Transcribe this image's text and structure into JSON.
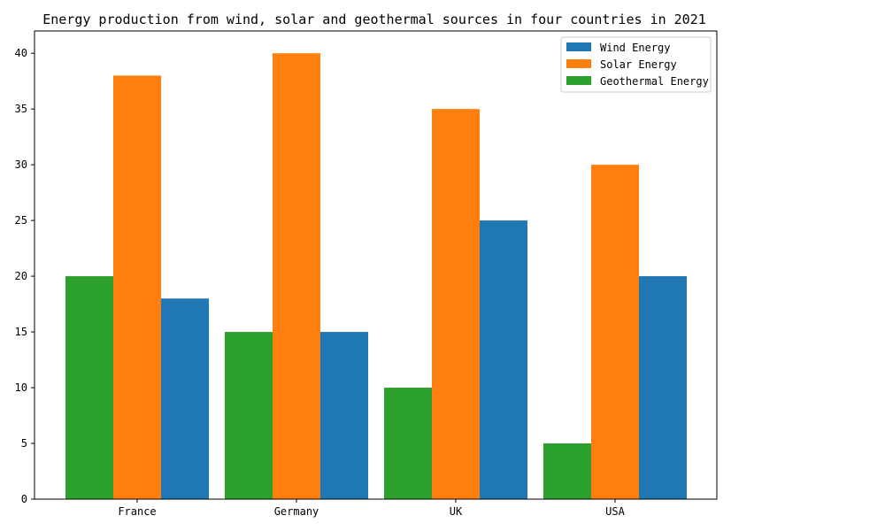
{
  "chart_data": {
    "type": "bar",
    "title": "Energy production from wind, solar and geothermal sources in four countries in 2021",
    "xlabel": "",
    "ylabel": "",
    "categories": [
      "France",
      "Germany",
      "UK",
      "USA"
    ],
    "bar_order": [
      "Geothermal Energy",
      "Solar Energy",
      "Wind Energy"
    ],
    "series": [
      {
        "name": "Wind Energy",
        "color": "#1f77b4",
        "values": [
          18,
          15,
          25,
          20
        ]
      },
      {
        "name": "Solar Energy",
        "color": "#ff7f0e",
        "values": [
          38,
          40,
          35,
          30
        ]
      },
      {
        "name": "Geothermal Energy",
        "color": "#2ca02c",
        "values": [
          20,
          15,
          10,
          5
        ]
      }
    ],
    "ylim": [
      0,
      42
    ],
    "yticks": [
      0,
      5,
      10,
      15,
      20,
      25,
      30,
      35,
      40
    ],
    "grid": false,
    "legend_position": "top-right"
  }
}
